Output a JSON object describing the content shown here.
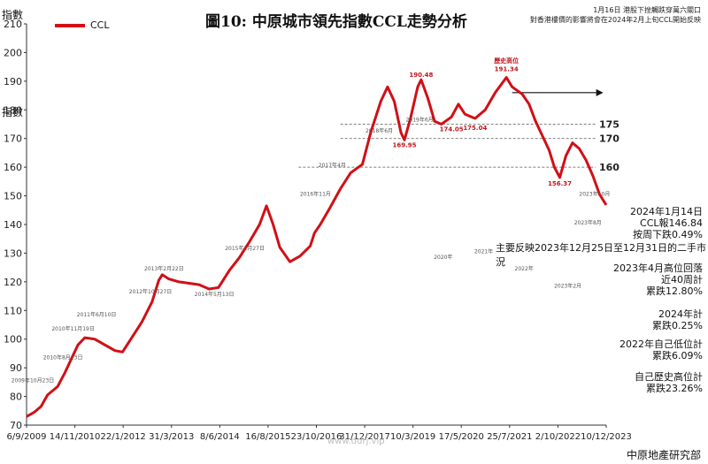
{
  "header": {
    "title": "圖10: 中原城市領先指數CCL走勢分析",
    "y_unit": "指數",
    "notes": [
      "1月16日 港股下挫觸跌穿萬六關口",
      "對香港樓價的影響將會在2024年2月上旬CCL開始反映"
    ]
  },
  "legend": {
    "label": "CCL"
  },
  "colors": {
    "line": "#d10f16",
    "dash": "#555555"
  },
  "chart_data": {
    "type": "line",
    "title": "圖10: 中原城市領先指數CCL走勢分析",
    "ylabel": "指數",
    "xlabel": "",
    "ylim": [
      70,
      210
    ],
    "yticks": [
      70,
      80,
      90,
      100,
      110,
      120,
      130,
      140,
      150,
      160,
      170,
      180,
      190,
      200,
      210
    ],
    "xticks": [
      "6/9/2009",
      "14/11/2010",
      "22/1/2012",
      "31/3/2013",
      "8/6/2014",
      "16/8/2015",
      "23/10/2016",
      "31/12/2017",
      "10/3/2019",
      "17/5/2020",
      "25/7/2021",
      "2/10/2022",
      "10/12/2023"
    ],
    "xrange": [
      "2009-09-06",
      "2024-01-14"
    ],
    "grid": false,
    "legend_position": "top-left",
    "series": [
      {
        "name": "CCL",
        "points": [
          [
            "2009-09-06",
            73.0
          ],
          [
            "2009-11-15",
            74.5
          ],
          [
            "2010-01-15",
            76.5
          ],
          [
            "2010-03-15",
            80.5
          ],
          [
            "2010-05-15",
            82.5
          ],
          [
            "2010-06-15",
            83.5
          ],
          [
            "2010-08-15",
            88.0
          ],
          [
            "2010-10-15",
            93.0
          ],
          [
            "2010-12-15",
            98.0
          ],
          [
            "2011-02-15",
            100.5
          ],
          [
            "2011-05-15",
            100.0
          ],
          [
            "2011-08-15",
            98.0
          ],
          [
            "2011-11-15",
            96.0
          ],
          [
            "2012-01-22",
            95.5
          ],
          [
            "2012-04-15",
            100.5
          ],
          [
            "2012-07-15",
            106.0
          ],
          [
            "2012-10-15",
            113.0
          ],
          [
            "2012-12-15",
            120.5
          ],
          [
            "2013-01-15",
            122.5
          ],
          [
            "2013-03-15",
            121.0
          ],
          [
            "2013-06-15",
            120.0
          ],
          [
            "2013-09-15",
            119.5
          ],
          [
            "2013-12-15",
            119.0
          ],
          [
            "2014-03-15",
            117.5
          ],
          [
            "2014-06-08",
            118.0
          ],
          [
            "2014-09-15",
            124.0
          ],
          [
            "2014-12-15",
            128.5
          ],
          [
            "2015-03-15",
            134.0
          ],
          [
            "2015-06-15",
            140.0
          ],
          [
            "2015-08-16",
            146.5
          ],
          [
            "2015-10-15",
            140.0
          ],
          [
            "2015-12-15",
            132.0
          ],
          [
            "2016-03-15",
            127.0
          ],
          [
            "2016-06-15",
            129.0
          ],
          [
            "2016-09-15",
            132.5
          ],
          [
            "2016-10-23",
            137.0
          ],
          [
            "2016-12-15",
            140.0
          ],
          [
            "2017-03-15",
            146.0
          ],
          [
            "2017-06-15",
            152.5
          ],
          [
            "2017-09-15",
            158.0
          ],
          [
            "2017-12-31",
            161.0
          ],
          [
            "2018-03-15",
            172.0
          ],
          [
            "2018-06-15",
            183.0
          ],
          [
            "2018-08-15",
            188.0
          ],
          [
            "2018-10-15",
            183.0
          ],
          [
            "2018-12-15",
            172.0
          ],
          [
            "2019-01-15",
            169.5
          ],
          [
            "2019-03-10",
            177.0
          ],
          [
            "2019-05-15",
            188.0
          ],
          [
            "2019-06-15",
            190.5
          ],
          [
            "2019-08-15",
            184.0
          ],
          [
            "2019-10-15",
            176.0
          ],
          [
            "2019-12-15",
            175.0
          ],
          [
            "2020-03-15",
            177.5
          ],
          [
            "2020-05-17",
            182.0
          ],
          [
            "2020-07-15",
            178.5
          ],
          [
            "2020-10-15",
            177.0
          ],
          [
            "2021-01-15",
            180.0
          ],
          [
            "2021-04-15",
            186.0
          ],
          [
            "2021-07-25",
            191.3
          ],
          [
            "2021-09-15",
            188.0
          ],
          [
            "2021-12-15",
            185.5
          ],
          [
            "2022-02-15",
            182.0
          ],
          [
            "2022-04-15",
            176.0
          ],
          [
            "2022-06-15",
            171.0
          ],
          [
            "2022-08-15",
            166.0
          ],
          [
            "2022-10-02",
            160.0
          ],
          [
            "2022-11-20",
            156.4
          ],
          [
            "2023-01-15",
            164.0
          ],
          [
            "2023-03-15",
            168.5
          ],
          [
            "2023-05-15",
            166.5
          ],
          [
            "2023-07-15",
            162.5
          ],
          [
            "2023-09-15",
            157.0
          ],
          [
            "2023-11-15",
            150.5
          ],
          [
            "2024-01-14",
            146.8
          ]
        ]
      }
    ],
    "reference_lines": [
      {
        "value": 175,
        "label": "175"
      },
      {
        "value": 170,
        "label": "170"
      },
      {
        "value": 160,
        "label": "160"
      }
    ],
    "labels": [
      {
        "text": "歷史高位",
        "x": "2021-07-25",
        "y": 196.5
      },
      {
        "text": "191.34",
        "x": "2021-07-25",
        "y": 193.5
      },
      {
        "text": "190.48",
        "x": "2019-06-15",
        "y": 191.5
      },
      {
        "text": "169.95",
        "x": "2019-01-15",
        "y": 167.0
      },
      {
        "text": "174.05",
        "x": "2020-03-15",
        "y": 172.5
      },
      {
        "text": "175.04",
        "x": "2020-10-15",
        "y": 173.0
      },
      {
        "text": "156.37",
        "x": "2022-11-20",
        "y": 153.5
      }
    ]
  },
  "annotations": [
    "2009年10月23日",
    "2010年8月13日",
    "2010年11月19日",
    "2011年6月10日",
    "2012年10月27日",
    "2013年2月22日",
    "2014年5月13日",
    "2015年2月27日",
    "2016年11月",
    "2017年4月",
    "2018年6月",
    "2019年6月",
    "2020年",
    "2021年",
    "2022年",
    "2023年2月",
    "2023年8月",
    "2023年10月"
  ],
  "right_panel": {
    "group1": [
      "2024年1月14日",
      "CCL報146.84",
      "按周下跌0.49%"
    ],
    "rebound": "主要反映2023年12月25日至12月31日的二手市況",
    "group2": [
      "2023年4月高位回落",
      "近40周計",
      "累跌12.80%"
    ],
    "group3": [
      "2024年計",
      "累跌0.25%"
    ],
    "group4": [
      "2022年自己低位計",
      "累跌6.09%"
    ],
    "group5": [
      "自己歷史高位計",
      "累跌23.26%"
    ]
  },
  "source": "中原地產研究部",
  "watermark": "www.ddrj.vip"
}
